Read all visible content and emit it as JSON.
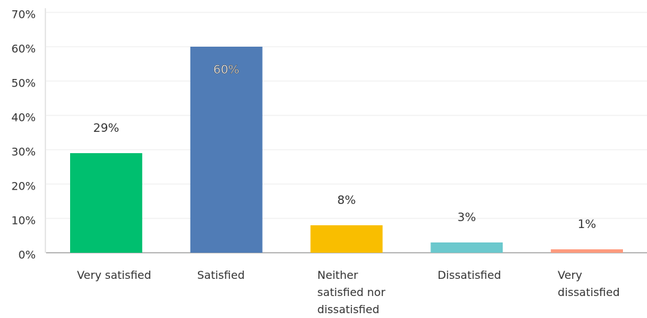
{
  "chart_data": {
    "type": "bar",
    "categories": [
      "Very satisfied",
      "Satisfied",
      "Neither satisfied nor dissatisfied",
      "Dissatisfied",
      "Very dissatisfied"
    ],
    "values": [
      29,
      60,
      8,
      3,
      1
    ],
    "value_labels": [
      "29%",
      "60%",
      "8%",
      "3%",
      "1%"
    ],
    "colors": [
      "#00bf6f",
      "#507cb6",
      "#f9be00",
      "#6bc8cd",
      "#ff9b7e"
    ],
    "ylim": [
      0,
      70
    ],
    "yticks": [
      {
        "value": 0,
        "label": "0%"
      },
      {
        "value": 10,
        "label": "10%"
      },
      {
        "value": 20,
        "label": "20%"
      },
      {
        "value": 30,
        "label": "30%"
      },
      {
        "value": 40,
        "label": "40%"
      },
      {
        "value": 50,
        "label": "50%"
      },
      {
        "value": 60,
        "label": "60%"
      },
      {
        "value": 70,
        "label": "70%"
      }
    ],
    "grid": true
  }
}
